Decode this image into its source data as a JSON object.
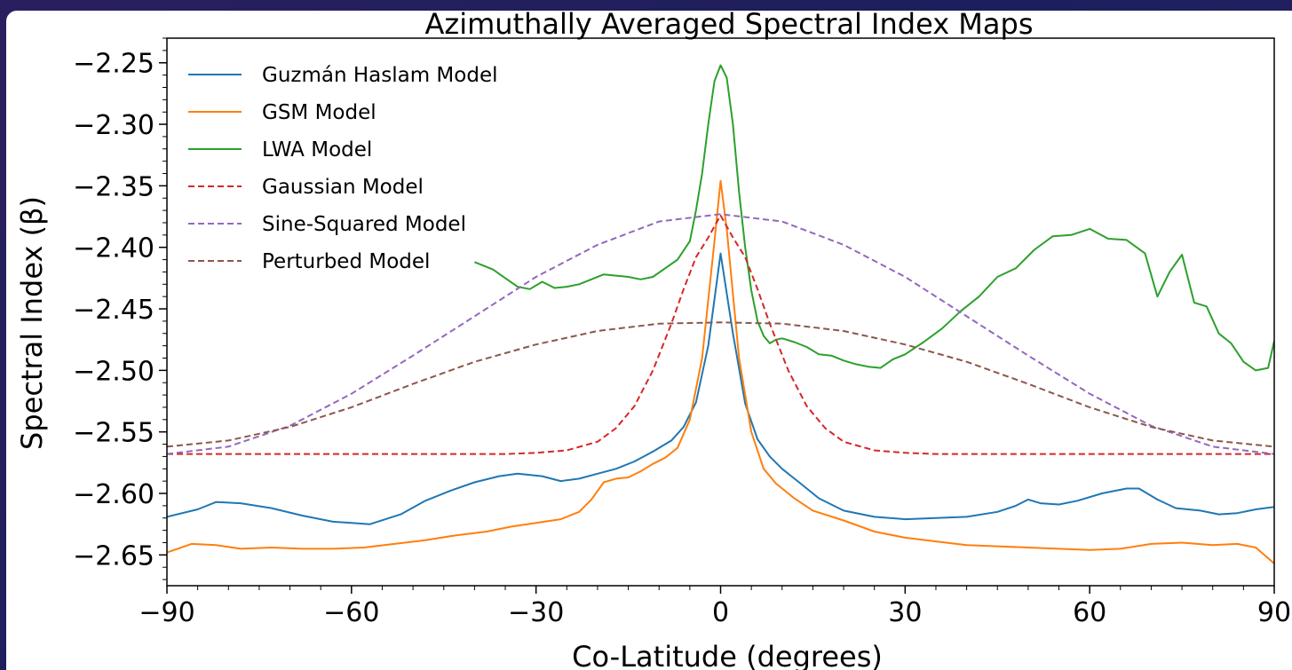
{
  "chart_data": {
    "type": "line",
    "title": "Azimuthally Averaged Spectral Index Maps",
    "xlabel": "Co-Latitude (degrees)",
    "ylabel": "Spectral Index (β)",
    "xlim": [
      -90,
      90
    ],
    "ylim": [
      -2.675,
      -2.23
    ],
    "xticks": [
      -90,
      -60,
      -30,
      0,
      30,
      60,
      90
    ],
    "xtick_labels": [
      "−90",
      "−60",
      "−30",
      "0",
      "30",
      "60",
      "90"
    ],
    "yticks": [
      -2.65,
      -2.6,
      -2.55,
      -2.5,
      -2.45,
      -2.4,
      -2.35,
      -2.3,
      -2.25
    ],
    "ytick_labels": [
      "−2.65",
      "−2.60",
      "−2.55",
      "−2.50",
      "−2.45",
      "−2.40",
      "−2.35",
      "−2.30",
      "−2.25"
    ],
    "grid": false,
    "legend_position": "top-left",
    "series": [
      {
        "name": "Guzmán Haslam Model",
        "color": "#1f77b4",
        "style": "solid",
        "x": [
          -90,
          -85,
          -82,
          -78,
          -73,
          -68,
          -63,
          -60,
          -57,
          -52,
          -48,
          -44,
          -40,
          -36,
          -33,
          -29,
          -26,
          -23,
          -20,
          -17,
          -14,
          -11,
          -8,
          -6,
          -4,
          -2,
          0,
          2,
          4,
          6,
          8,
          10,
          13,
          16,
          20,
          25,
          30,
          35,
          40,
          45,
          48,
          50,
          52,
          55,
          58,
          62,
          66,
          68,
          71,
          74,
          78,
          81,
          84,
          87,
          90
        ],
        "y": [
          -2.619,
          -2.613,
          -2.607,
          -2.608,
          -2.612,
          -2.618,
          -2.623,
          -2.624,
          -2.625,
          -2.617,
          -2.606,
          -2.598,
          -2.591,
          -2.586,
          -2.584,
          -2.586,
          -2.59,
          -2.588,
          -2.584,
          -2.58,
          -2.574,
          -2.566,
          -2.557,
          -2.546,
          -2.526,
          -2.48,
          -2.405,
          -2.47,
          -2.527,
          -2.556,
          -2.57,
          -2.58,
          -2.592,
          -2.604,
          -2.614,
          -2.619,
          -2.621,
          -2.62,
          -2.619,
          -2.615,
          -2.61,
          -2.605,
          -2.608,
          -2.609,
          -2.606,
          -2.6,
          -2.596,
          -2.596,
          -2.605,
          -2.612,
          -2.614,
          -2.617,
          -2.616,
          -2.613,
          -2.611
        ]
      },
      {
        "name": "GSM Model",
        "color": "#ff7f0e",
        "style": "solid",
        "x": [
          -90,
          -86,
          -82,
          -78,
          -73,
          -68,
          -63,
          -58,
          -53,
          -48,
          -43,
          -38,
          -34,
          -30,
          -26,
          -23,
          -21,
          -19,
          -17,
          -15,
          -13,
          -11,
          -9,
          -7,
          -5,
          -3,
          -1,
          0,
          1,
          3,
          5,
          7,
          9,
          12,
          15,
          20,
          25,
          30,
          35,
          40,
          45,
          50,
          55,
          60,
          65,
          70,
          75,
          80,
          84,
          87,
          90
        ],
        "y": [
          -2.648,
          -2.641,
          -2.642,
          -2.645,
          -2.644,
          -2.645,
          -2.645,
          -2.644,
          -2.641,
          -2.638,
          -2.634,
          -2.631,
          -2.627,
          -2.624,
          -2.621,
          -2.615,
          -2.605,
          -2.591,
          -2.588,
          -2.587,
          -2.582,
          -2.576,
          -2.571,
          -2.563,
          -2.54,
          -2.49,
          -2.395,
          -2.346,
          -2.385,
          -2.49,
          -2.55,
          -2.58,
          -2.592,
          -2.604,
          -2.614,
          -2.622,
          -2.631,
          -2.636,
          -2.639,
          -2.642,
          -2.643,
          -2.644,
          -2.645,
          -2.646,
          -2.645,
          -2.641,
          -2.64,
          -2.642,
          -2.641,
          -2.644,
          -2.657
        ]
      },
      {
        "name": "LWA Model",
        "color": "#2ca02c",
        "style": "solid",
        "x": [
          -40,
          -37,
          -35,
          -33,
          -31,
          -29,
          -27,
          -25,
          -23,
          -21,
          -19,
          -17,
          -15,
          -13,
          -11,
          -9,
          -7,
          -5,
          -4,
          -3,
          -2,
          -1,
          0,
          1,
          2,
          3,
          4,
          5,
          6,
          7,
          8,
          9,
          10,
          12,
          14,
          16,
          18,
          20,
          22,
          24,
          26,
          28,
          30,
          33,
          36,
          39,
          42,
          45,
          48,
          51,
          54,
          57,
          60,
          63,
          66,
          69,
          71,
          73,
          75,
          77,
          79,
          81,
          83,
          85,
          87,
          89,
          90
        ],
        "y": [
          -2.412,
          -2.418,
          -2.425,
          -2.432,
          -2.434,
          -2.428,
          -2.433,
          -2.432,
          -2.43,
          -2.426,
          -2.422,
          -2.423,
          -2.424,
          -2.426,
          -2.424,
          -2.417,
          -2.41,
          -2.395,
          -2.37,
          -2.34,
          -2.3,
          -2.265,
          -2.252,
          -2.262,
          -2.3,
          -2.355,
          -2.4,
          -2.435,
          -2.46,
          -2.472,
          -2.478,
          -2.475,
          -2.474,
          -2.477,
          -2.481,
          -2.487,
          -2.488,
          -2.492,
          -2.495,
          -2.497,
          -2.498,
          -2.491,
          -2.487,
          -2.477,
          -2.466,
          -2.452,
          -2.44,
          -2.424,
          -2.417,
          -2.402,
          -2.391,
          -2.39,
          -2.385,
          -2.393,
          -2.394,
          -2.405,
          -2.44,
          -2.42,
          -2.406,
          -2.445,
          -2.448,
          -2.47,
          -2.478,
          -2.493,
          -2.5,
          -2.498,
          -2.476
        ]
      },
      {
        "name": "Gaussian Model",
        "color": "#d62728",
        "style": "dashed",
        "x": [
          -90,
          -80,
          -70,
          -60,
          -50,
          -40,
          -35,
          -30,
          -25,
          -20,
          -17,
          -14,
          -11,
          -8,
          -6,
          -4,
          -2,
          0,
          2,
          4,
          6,
          8,
          11,
          14,
          17,
          20,
          25,
          30,
          35,
          40,
          50,
          60,
          70,
          80,
          90
        ],
        "y": [
          -2.568,
          -2.568,
          -2.568,
          -2.568,
          -2.568,
          -2.568,
          -2.568,
          -2.567,
          -2.565,
          -2.558,
          -2.547,
          -2.529,
          -2.5,
          -2.462,
          -2.434,
          -2.408,
          -2.392,
          -2.374,
          -2.392,
          -2.408,
          -2.434,
          -2.462,
          -2.5,
          -2.529,
          -2.547,
          -2.558,
          -2.565,
          -2.567,
          -2.568,
          -2.568,
          -2.568,
          -2.568,
          -2.568,
          -2.568,
          -2.568
        ]
      },
      {
        "name": "Sine-Squared Model",
        "color": "#9467bd",
        "style": "dashed",
        "x": [
          -90,
          -80,
          -70,
          -60,
          -50,
          -40,
          -30,
          -20,
          -10,
          0,
          10,
          20,
          30,
          40,
          50,
          60,
          70,
          80,
          90
        ],
        "y": [
          -2.568,
          -2.562,
          -2.545,
          -2.519,
          -2.488,
          -2.456,
          -2.424,
          -2.398,
          -2.379,
          -2.373,
          -2.379,
          -2.398,
          -2.424,
          -2.456,
          -2.488,
          -2.519,
          -2.545,
          -2.562,
          -2.568
        ]
      },
      {
        "name": "Perturbed Model",
        "color": "#8c564b",
        "style": "dashed",
        "x": [
          -90,
          -80,
          -70,
          -60,
          -50,
          -40,
          -30,
          -20,
          -10,
          0,
          10,
          20,
          30,
          40,
          50,
          60,
          70,
          80,
          90
        ],
        "y": [
          -2.562,
          -2.557,
          -2.546,
          -2.53,
          -2.511,
          -2.493,
          -2.479,
          -2.468,
          -2.462,
          -2.461,
          -2.462,
          -2.468,
          -2.479,
          -2.493,
          -2.511,
          -2.53,
          -2.546,
          -2.557,
          -2.562
        ]
      }
    ]
  }
}
